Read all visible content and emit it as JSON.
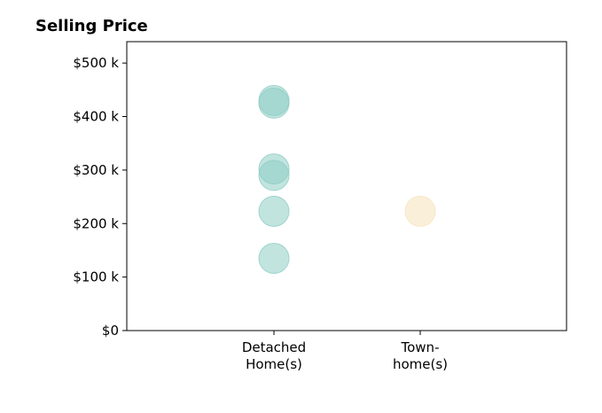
{
  "chart_data": {
    "type": "scatter",
    "title": "Selling Price",
    "xlabel": "",
    "ylabel": "",
    "categories": [
      [
        "Detached",
        "Home(s)"
      ],
      [
        "Town-",
        "home(s)"
      ]
    ],
    "ylim": [
      0,
      540
    ],
    "yticks": [
      0,
      100,
      200,
      300,
      400,
      500
    ],
    "ytick_labels": [
      "$0",
      "$100 k",
      "$200 k",
      "$300 k",
      "$400 k",
      "$500 k"
    ],
    "grid": false,
    "series": [
      {
        "category_index": 0,
        "color": "#8ecdc4",
        "values": [
          135,
          223,
          290,
          302,
          425,
          430
        ]
      },
      {
        "category_index": 1,
        "color": "#f6e4bc",
        "values": [
          223
        ]
      }
    ]
  }
}
